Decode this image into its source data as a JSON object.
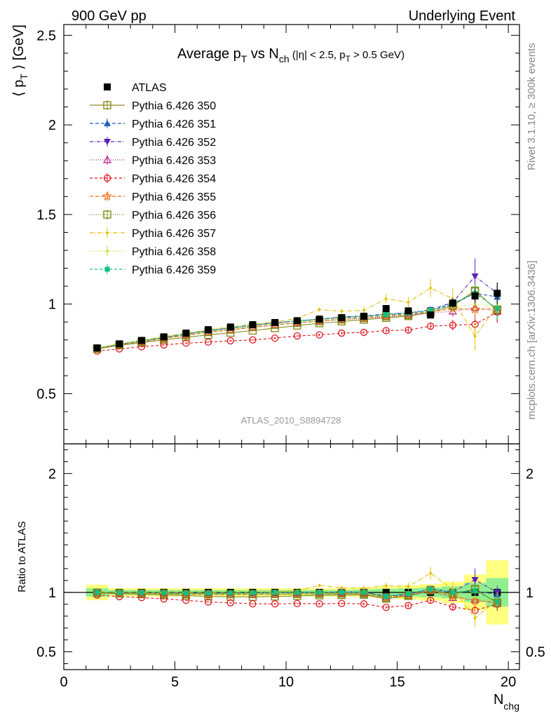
{
  "header": {
    "left": "900 GeV pp",
    "right": "Underlying Event"
  },
  "side_labels": {
    "rivet": "Rivet 3.1.10, ≥ 300k events",
    "mcplots": "mcplots.cern.ch [arXiv:1306.3436]"
  },
  "colors": {
    "ATLAS": "#000000",
    "p350": "#8b8b1e",
    "p351": "#1f5fbf",
    "p352": "#5a22b8",
    "p353": "#b0208c",
    "p354": "#e0141e",
    "p355": "#f26a11",
    "p356": "#7a8a12",
    "p357": "#e0c000",
    "p358": "#c8d820",
    "p359": "#10c080",
    "band_inner": "#90ee90",
    "band_outer": "#ffff80"
  },
  "chart_data": [
    {
      "type": "line",
      "panel": "main",
      "title_main": "Average p",
      "title_sub1": "T",
      "title_mid": " vs N",
      "title_sub2": "ch",
      "title_cut": " (|η| < 2.5, p",
      "title_sub3": "T",
      "title_end": " > 0.5 GeV)",
      "ylabel_main": "⟨ p",
      "ylabel_sub": "T",
      "ylabel_end": " ⟩ [GeV]",
      "watermark": "ATLAS_2010_S8894728",
      "xlim": [
        0,
        20.5
      ],
      "ylim": [
        0.22,
        2.56
      ],
      "yticks": [
        0.5,
        1,
        1.5,
        2,
        2.5
      ],
      "ytick_labels": [
        "0.5",
        "1",
        "1.5",
        "2",
        "2.5"
      ],
      "x": [
        1.5,
        2.5,
        3.5,
        4.5,
        5.5,
        6.5,
        7.5,
        8.5,
        9.5,
        10.5,
        11.5,
        12.5,
        13.5,
        14.5,
        15.5,
        16.5,
        17.5,
        18.5,
        19.5
      ],
      "legend": [
        {
          "key": "ATLAS",
          "label": "ATLAS"
        },
        {
          "key": "p350",
          "label": "Pythia 6.426 350"
        },
        {
          "key": "p351",
          "label": "Pythia 6.426 351"
        },
        {
          "key": "p352",
          "label": "Pythia 6.426 352"
        },
        {
          "key": "p353",
          "label": "Pythia 6.426 353"
        },
        {
          "key": "p354",
          "label": "Pythia 6.426 354"
        },
        {
          "key": "p355",
          "label": "Pythia 6.426 355"
        },
        {
          "key": "p356",
          "label": "Pythia 6.426 356"
        },
        {
          "key": "p357",
          "label": "Pythia 6.426 357"
        },
        {
          "key": "p358",
          "label": "Pythia 6.426 358"
        },
        {
          "key": "p359",
          "label": "Pythia 6.426 359"
        }
      ],
      "series": [
        {
          "key": "ATLAS",
          "name": "ATLAS",
          "values": [
            0.755,
            0.778,
            0.797,
            0.817,
            0.838,
            0.857,
            0.872,
            0.885,
            0.897,
            0.907,
            0.916,
            0.924,
            0.932,
            0.975,
            0.962,
            0.939,
            1.005,
            1.045,
            1.06
          ],
          "err": [
            0.007,
            0.007,
            0.007,
            0.007,
            0.007,
            0.007,
            0.007,
            0.007,
            0.008,
            0.008,
            0.009,
            0.01,
            0.011,
            0.013,
            0.015,
            0.018,
            0.025,
            0.04,
            0.06
          ]
        },
        {
          "key": "p350",
          "name": "Pythia 6.426 350",
          "values": [
            0.75,
            0.77,
            0.785,
            0.8,
            0.815,
            0.828,
            0.84,
            0.852,
            0.866,
            0.88,
            0.893,
            0.903,
            0.913,
            0.923,
            0.933,
            0.955,
            0.99,
            1.075,
            0.965
          ],
          "err": [
            0.004,
            0.004,
            0.004,
            0.004,
            0.004,
            0.005,
            0.005,
            0.005,
            0.006,
            0.006,
            0.007,
            0.008,
            0.01,
            0.012,
            0.015,
            0.02,
            0.03,
            0.05,
            0.06
          ]
        },
        {
          "key": "p351",
          "name": "Pythia 6.426 351",
          "values": [
            0.752,
            0.774,
            0.793,
            0.812,
            0.832,
            0.85,
            0.866,
            0.88,
            0.895,
            0.905,
            0.915,
            0.924,
            0.93,
            0.94,
            0.945,
            0.962,
            1.0,
            1.06,
            1.04
          ],
          "err": [
            0.004,
            0.004,
            0.004,
            0.004,
            0.004,
            0.005,
            0.005,
            0.005,
            0.006,
            0.006,
            0.007,
            0.008,
            0.01,
            0.012,
            0.015,
            0.02,
            0.03,
            0.05,
            0.06
          ]
        },
        {
          "key": "p352",
          "name": "Pythia 6.426 352",
          "values": [
            0.752,
            0.776,
            0.794,
            0.814,
            0.833,
            0.852,
            0.867,
            0.882,
            0.896,
            0.906,
            0.916,
            0.928,
            0.934,
            0.945,
            0.95,
            0.968,
            1.01,
            1.155,
            1.06
          ],
          "err": [
            0.004,
            0.004,
            0.004,
            0.004,
            0.004,
            0.005,
            0.005,
            0.005,
            0.006,
            0.006,
            0.007,
            0.008,
            0.01,
            0.012,
            0.015,
            0.02,
            0.03,
            0.1,
            0.06
          ]
        },
        {
          "key": "p353",
          "name": "Pythia 6.426 353",
          "values": [
            0.75,
            0.772,
            0.79,
            0.808,
            0.826,
            0.843,
            0.858,
            0.872,
            0.885,
            0.895,
            0.905,
            0.913,
            0.92,
            0.928,
            0.935,
            0.95,
            0.96,
            0.98,
            0.96
          ],
          "err": [
            0.004,
            0.004,
            0.004,
            0.004,
            0.004,
            0.005,
            0.005,
            0.005,
            0.006,
            0.006,
            0.007,
            0.008,
            0.01,
            0.012,
            0.015,
            0.02,
            0.03,
            0.05,
            0.06
          ]
        },
        {
          "key": "p354",
          "name": "Pythia 6.426 354",
          "values": [
            0.738,
            0.75,
            0.762,
            0.772,
            0.782,
            0.788,
            0.795,
            0.8,
            0.81,
            0.822,
            0.828,
            0.838,
            0.842,
            0.852,
            0.855,
            0.877,
            0.882,
            0.887,
            0.955
          ],
          "err": [
            0.004,
            0.004,
            0.004,
            0.004,
            0.004,
            0.005,
            0.005,
            0.005,
            0.006,
            0.006,
            0.007,
            0.008,
            0.01,
            0.012,
            0.015,
            0.02,
            0.03,
            0.05,
            0.06
          ]
        },
        {
          "key": "p355",
          "name": "Pythia 6.426 355",
          "values": [
            0.75,
            0.772,
            0.79,
            0.808,
            0.826,
            0.842,
            0.856,
            0.87,
            0.883,
            0.895,
            0.905,
            0.915,
            0.922,
            0.932,
            0.94,
            0.955,
            0.975,
            0.97,
            0.975
          ],
          "err": [
            0.004,
            0.004,
            0.004,
            0.004,
            0.004,
            0.005,
            0.005,
            0.005,
            0.006,
            0.006,
            0.007,
            0.008,
            0.01,
            0.012,
            0.015,
            0.02,
            0.03,
            0.05,
            0.06
          ]
        },
        {
          "key": "p356",
          "name": "Pythia 6.426 356",
          "values": [
            0.752,
            0.772,
            0.79,
            0.808,
            0.826,
            0.844,
            0.858,
            0.872,
            0.885,
            0.895,
            0.905,
            0.914,
            0.922,
            0.932,
            0.94,
            0.955,
            0.995,
            1.07,
            0.97
          ],
          "err": [
            0.004,
            0.004,
            0.004,
            0.004,
            0.004,
            0.005,
            0.005,
            0.005,
            0.006,
            0.006,
            0.007,
            0.008,
            0.01,
            0.012,
            0.015,
            0.02,
            0.03,
            0.05,
            0.06
          ]
        },
        {
          "key": "p357",
          "name": "Pythia 6.426 357",
          "values": [
            0.755,
            0.778,
            0.797,
            0.818,
            0.838,
            0.856,
            0.874,
            0.888,
            0.9,
            0.92,
            0.97,
            0.96,
            0.965,
            1.03,
            1.01,
            1.09,
            1.03,
            0.82,
            0.99
          ],
          "err": [
            0.004,
            0.004,
            0.004,
            0.004,
            0.004,
            0.005,
            0.005,
            0.005,
            0.006,
            0.008,
            0.012,
            0.015,
            0.02,
            0.025,
            0.03,
            0.05,
            0.06,
            0.08,
            0.07
          ]
        },
        {
          "key": "p358",
          "name": "Pythia 6.426 358",
          "values": [
            0.752,
            0.774,
            0.793,
            0.812,
            0.83,
            0.848,
            0.864,
            0.877,
            0.89,
            0.9,
            0.912,
            0.92,
            0.928,
            0.936,
            0.943,
            0.958,
            0.985,
            1.0,
            0.985
          ],
          "err": [
            0.004,
            0.004,
            0.004,
            0.004,
            0.004,
            0.005,
            0.005,
            0.005,
            0.006,
            0.006,
            0.007,
            0.008,
            0.01,
            0.012,
            0.015,
            0.02,
            0.03,
            0.05,
            0.06
          ]
        },
        {
          "key": "p359",
          "name": "Pythia 6.426 359",
          "values": [
            0.754,
            0.776,
            0.795,
            0.815,
            0.834,
            0.852,
            0.868,
            0.882,
            0.896,
            0.906,
            0.916,
            0.926,
            0.933,
            0.943,
            0.952,
            0.966,
            1.005,
            1.06,
            0.975
          ],
          "err": [
            0.004,
            0.004,
            0.004,
            0.004,
            0.004,
            0.005,
            0.005,
            0.005,
            0.006,
            0.006,
            0.007,
            0.008,
            0.01,
            0.012,
            0.015,
            0.02,
            0.03,
            0.05,
            0.06
          ]
        }
      ]
    },
    {
      "type": "line",
      "panel": "ratio",
      "ylabel": "Ratio to ATLAS",
      "xlabel_main": "N",
      "xlabel_sub": "chg",
      "xlim": [
        0,
        20.5
      ],
      "ylim": [
        0.35,
        2.25
      ],
      "xticks": [
        0,
        5,
        10,
        15,
        20
      ],
      "xtick_labels": [
        "0",
        "5",
        "10",
        "15",
        "20"
      ],
      "yticks": [
        0.5,
        1,
        2
      ],
      "ytick_labels": [
        "0.5",
        "1",
        "2"
      ],
      "band_x_edges": [
        1,
        2,
        3,
        4,
        5,
        6,
        7,
        8,
        9,
        10,
        11,
        12,
        13,
        14,
        15,
        16,
        17,
        18,
        19,
        20
      ],
      "band_inner": [
        0.035,
        0.02,
        0.02,
        0.02,
        0.02,
        0.02,
        0.02,
        0.02,
        0.02,
        0.02,
        0.02,
        0.02,
        0.025,
        0.03,
        0.035,
        0.04,
        0.05,
        0.08,
        0.12
      ],
      "band_outer": [
        0.065,
        0.035,
        0.035,
        0.035,
        0.035,
        0.035,
        0.035,
        0.035,
        0.035,
        0.035,
        0.035,
        0.035,
        0.04,
        0.05,
        0.06,
        0.07,
        0.09,
        0.15,
        0.27
      ]
    }
  ]
}
